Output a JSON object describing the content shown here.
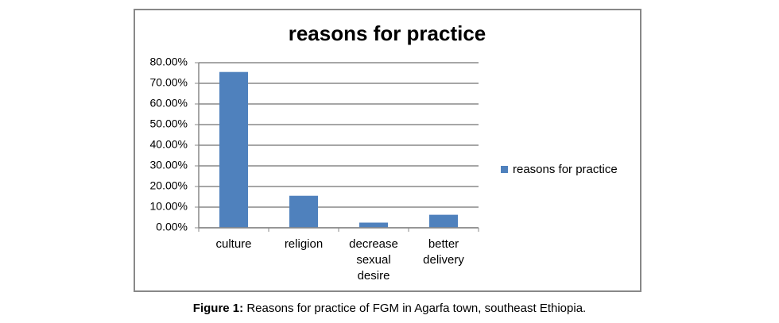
{
  "chart_data": {
    "type": "bar",
    "title": "reasons for practice",
    "categories": [
      "culture",
      "religion",
      "decrease sexual desire",
      "better delivery"
    ],
    "series": [
      {
        "name": "reasons for practice",
        "color": "#4f81bd",
        "values": [
          75.5,
          15.5,
          2.5,
          6.3
        ]
      }
    ],
    "ylim": [
      0,
      80
    ],
    "yticks": [
      {
        "value": 0,
        "label": "0.00%"
      },
      {
        "value": 10,
        "label": "10.00%"
      },
      {
        "value": 20,
        "label": "20.00%"
      },
      {
        "value": 30,
        "label": "30.00%"
      },
      {
        "value": 40,
        "label": "40.00%"
      },
      {
        "value": 50,
        "label": "50.00%"
      },
      {
        "value": 60,
        "label": "60.00%"
      },
      {
        "value": 70,
        "label": "70.00%"
      },
      {
        "value": 80,
        "label": "80.00%"
      }
    ],
    "grid": true,
    "legend": "right"
  },
  "caption": {
    "label": "Figure 1:",
    "text": "Reasons for practice of FGM in Agarfa town, southeast Ethiopia."
  }
}
